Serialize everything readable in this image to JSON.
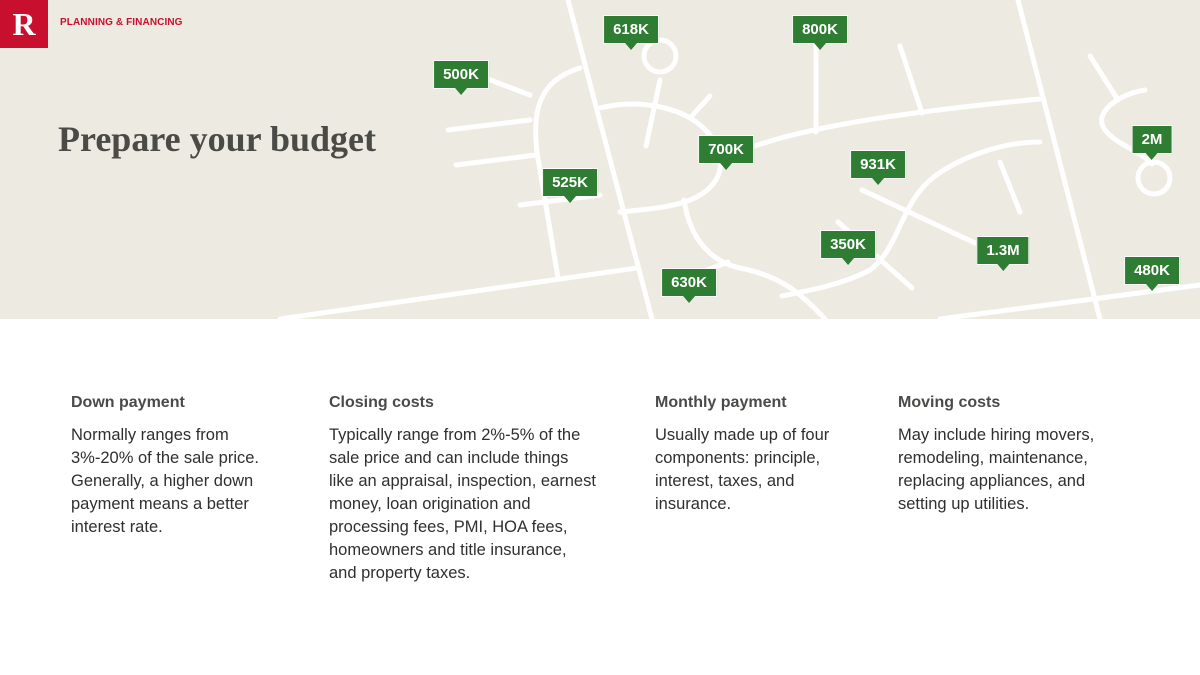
{
  "header": {
    "logo": "R",
    "eyebrow": "PLANNING & FINANCING",
    "title": "Prepare your budget"
  },
  "map": {
    "pins": [
      {
        "label": "618K"
      },
      {
        "label": "800K"
      },
      {
        "label": "500K"
      },
      {
        "label": "700K"
      },
      {
        "label": "525K"
      },
      {
        "label": "931K"
      },
      {
        "label": "2M"
      },
      {
        "label": "350K"
      },
      {
        "label": "1.3M"
      },
      {
        "label": "630K"
      },
      {
        "label": "480K"
      }
    ],
    "colors": {
      "background": "#edeae2",
      "roads": "#ffffff",
      "pin": "#2e7d32"
    }
  },
  "sections": [
    {
      "heading": "Down payment",
      "body": "Normally ranges from 3%-20% of the sale price. Generally, a higher down payment means a better interest rate."
    },
    {
      "heading": "Closing costs",
      "body": "Typically range from 2%-5% of the sale price and can include things like an appraisal, inspection, earnest money, loan origination and processing fees, PMI, HOA fees, homeowners and title insurance, and property taxes."
    },
    {
      "heading": "Monthly payment",
      "body": "Usually made up of four components: principle, interest, taxes, and insurance."
    },
    {
      "heading": "Moving costs",
      "body": "May include hiring movers, remodeling, maintenance, replacing appliances, and setting up utilities."
    }
  ],
  "colors": {
    "brand": "#c8102e",
    "accent_green": "#2e7d32"
  }
}
